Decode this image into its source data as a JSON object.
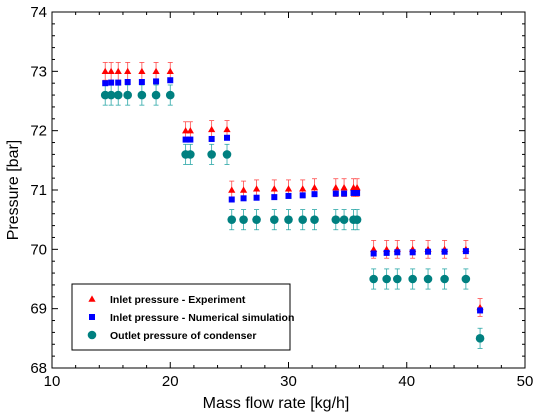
{
  "chart_data": {
    "type": "scatter",
    "xlabel": "Mass flow rate [kg/h]",
    "ylabel": "Pressure [bar]",
    "xlim": [
      10,
      50
    ],
    "ylim": [
      68,
      74
    ],
    "xticks": [
      10,
      20,
      30,
      40,
      50
    ],
    "yticks": [
      68,
      69,
      70,
      71,
      72,
      73,
      74
    ],
    "legend_position": "lower-left",
    "series": [
      {
        "name": "Inlet pressure - Experiment",
        "marker": "triangle",
        "color": "#ff0000",
        "error": 0.15,
        "points": [
          [
            14.5,
            73.0
          ],
          [
            15.0,
            73.0
          ],
          [
            15.6,
            73.0
          ],
          [
            16.4,
            73.0
          ],
          [
            17.6,
            73.0
          ],
          [
            18.8,
            73.0
          ],
          [
            20.0,
            73.0
          ],
          [
            21.3,
            72.0
          ],
          [
            21.7,
            72.0
          ],
          [
            23.5,
            72.02
          ],
          [
            24.8,
            72.02
          ],
          [
            25.2,
            71.0
          ],
          [
            26.2,
            71.0
          ],
          [
            27.3,
            71.02
          ],
          [
            28.8,
            71.02
          ],
          [
            30.0,
            71.02
          ],
          [
            31.2,
            71.02
          ],
          [
            32.2,
            71.04
          ],
          [
            34.0,
            71.04
          ],
          [
            34.7,
            71.04
          ],
          [
            35.5,
            71.04
          ],
          [
            35.8,
            71.04
          ],
          [
            37.2,
            70.0
          ],
          [
            38.3,
            70.0
          ],
          [
            39.2,
            70.0
          ],
          [
            40.5,
            70.0
          ],
          [
            41.8,
            70.0
          ],
          [
            43.2,
            70.0
          ],
          [
            45.0,
            70.0
          ],
          [
            46.2,
            69.02
          ]
        ]
      },
      {
        "name": "Inlet pressure - Numerical simulation",
        "marker": "square",
        "color": "#0000ff",
        "error": 0.0,
        "points": [
          [
            14.5,
            72.8
          ],
          [
            15.0,
            72.81
          ],
          [
            15.6,
            72.81
          ],
          [
            16.4,
            72.82
          ],
          [
            17.6,
            72.82
          ],
          [
            18.8,
            72.83
          ],
          [
            20.0,
            72.85
          ],
          [
            21.3,
            71.85
          ],
          [
            21.7,
            71.85
          ],
          [
            23.5,
            71.86
          ],
          [
            24.8,
            71.88
          ],
          [
            25.2,
            70.84
          ],
          [
            26.2,
            70.86
          ],
          [
            27.3,
            70.87
          ],
          [
            28.8,
            70.88
          ],
          [
            30.0,
            70.9
          ],
          [
            31.2,
            70.91
          ],
          [
            32.2,
            70.93
          ],
          [
            34.0,
            70.94
          ],
          [
            34.7,
            70.94
          ],
          [
            35.5,
            70.95
          ],
          [
            35.8,
            70.95
          ],
          [
            37.2,
            69.93
          ],
          [
            38.3,
            69.94
          ],
          [
            39.2,
            69.95
          ],
          [
            40.5,
            69.95
          ],
          [
            41.8,
            69.96
          ],
          [
            43.2,
            69.96
          ],
          [
            45.0,
            69.97
          ],
          [
            46.2,
            68.97
          ]
        ]
      },
      {
        "name": "Outlet pressure of condenser",
        "marker": "circle",
        "color": "#008080",
        "error": 0.17,
        "points": [
          [
            14.5,
            72.6
          ],
          [
            15.0,
            72.6
          ],
          [
            15.6,
            72.6
          ],
          [
            16.4,
            72.6
          ],
          [
            17.6,
            72.6
          ],
          [
            18.8,
            72.6
          ],
          [
            20.0,
            72.6
          ],
          [
            21.3,
            71.6
          ],
          [
            21.7,
            71.6
          ],
          [
            23.5,
            71.6
          ],
          [
            24.8,
            71.6
          ],
          [
            25.2,
            70.5
          ],
          [
            26.2,
            70.5
          ],
          [
            27.3,
            70.5
          ],
          [
            28.8,
            70.5
          ],
          [
            30.0,
            70.5
          ],
          [
            31.2,
            70.5
          ],
          [
            32.2,
            70.5
          ],
          [
            34.0,
            70.5
          ],
          [
            34.7,
            70.5
          ],
          [
            35.5,
            70.5
          ],
          [
            35.8,
            70.5
          ],
          [
            37.2,
            69.5
          ],
          [
            38.3,
            69.5
          ],
          [
            39.2,
            69.5
          ],
          [
            40.5,
            69.5
          ],
          [
            41.8,
            69.5
          ],
          [
            43.2,
            69.5
          ],
          [
            45.0,
            69.5
          ],
          [
            46.2,
            68.5
          ]
        ]
      }
    ]
  }
}
